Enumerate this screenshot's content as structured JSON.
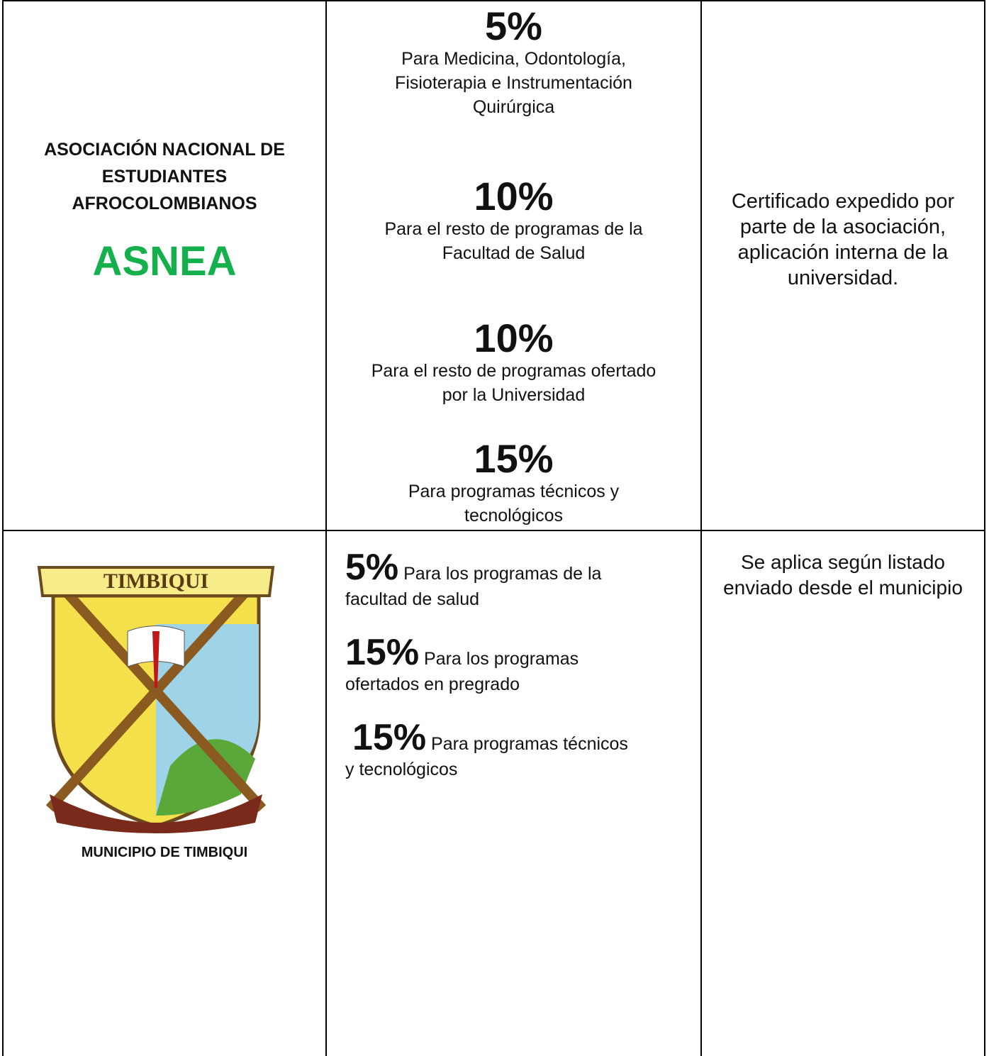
{
  "table": {
    "rows": [
      {
        "entity": {
          "name": [
            "ASOCIACIÓN NACIONAL DE",
            "ESTUDIANTES",
            "AFROCOLOMBIANOS"
          ],
          "acronym": "ASNEA"
        },
        "discounts": [
          {
            "percent": "5%",
            "description": [
              "Para Medicina, Odontología,",
              "Fisioterapia e Instrumentación",
              "Quirúrgica"
            ]
          },
          {
            "percent": "10%",
            "description": [
              "Para el resto de programas de la",
              "Facultad de Salud"
            ]
          },
          {
            "percent": "10%",
            "description": [
              "Para el resto de programas ofertado",
              "por la Universidad"
            ]
          },
          {
            "percent": "15%",
            "description": [
              "Para programas técnicos y",
              "tecnológicos"
            ]
          }
        ],
        "requirement": [
          "Certificado expedido por",
          "parte de la asociación,",
          "aplicación interna de la",
          "universidad."
        ]
      },
      {
        "entity": {
          "logo_banner": "TIMBIQUI",
          "name": [
            "MUNICIPIO DE TIMBIQUI"
          ]
        },
        "discounts": [
          {
            "percent": "5%",
            "description": [
              "Para los programas de la",
              "facultad de salud"
            ]
          },
          {
            "percent": "15%",
            "description": [
              "Para los programas",
              "ofertados en pregrado"
            ]
          },
          {
            "percent": "15%",
            "description": [
              "Para programas técnicos",
              "y tecnológicos"
            ]
          }
        ],
        "requirement": [
          "Se aplica según listado",
          "enviado desde el municipio"
        ]
      }
    ]
  }
}
